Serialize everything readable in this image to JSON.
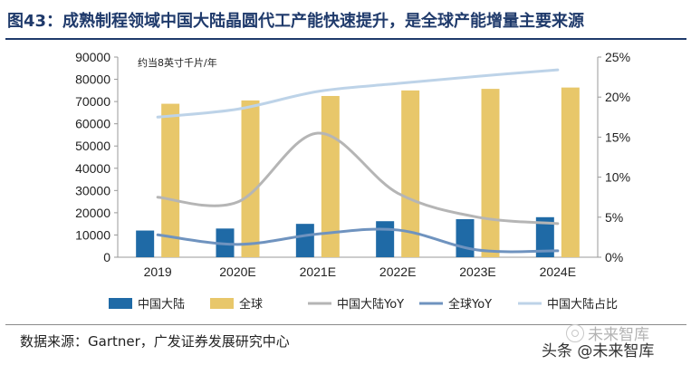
{
  "header": {
    "title": "图43：成熟制程领域中国大陆晶圆代工产能快速提升，是全球产能增量主要来源"
  },
  "chart_data": {
    "type": "bar",
    "categories": [
      "2019",
      "2020E",
      "2021E",
      "2022E",
      "2023E",
      "2024E"
    ],
    "unit_note": "约当8英寸千片/年",
    "left_axis": {
      "min": 0,
      "max": 90000,
      "ticks": [
        "0",
        "10000",
        "20000",
        "30000",
        "40000",
        "50000",
        "60000",
        "70000",
        "80000",
        "90000"
      ]
    },
    "right_axis": {
      "min": 0,
      "max": 25,
      "ticks": [
        "0%",
        "5%",
        "10%",
        "15%",
        "20%",
        "25%"
      ]
    },
    "series": [
      {
        "name": "中国大陆",
        "kind": "bar",
        "axis": "left",
        "color": "#1f6aa6",
        "values": [
          12000,
          12900,
          15000,
          16200,
          17100,
          18000
        ]
      },
      {
        "name": "全球",
        "kind": "bar",
        "axis": "left",
        "color": "#e8c76a",
        "values": [
          69000,
          70500,
          72500,
          75000,
          75700,
          76300
        ]
      },
      {
        "name": "中国大陆YoY",
        "kind": "line",
        "axis": "right",
        "color": "#b5b5b5",
        "values": [
          7.5,
          6.9,
          15.5,
          8.0,
          5.0,
          4.2
        ]
      },
      {
        "name": "全球YoY",
        "kind": "line",
        "axis": "right",
        "color": "#6f93bf",
        "values": [
          2.8,
          1.6,
          2.9,
          3.4,
          0.9,
          0.8
        ]
      },
      {
        "name": "中国大陆占比",
        "kind": "line",
        "axis": "right",
        "color": "#bdd3e8",
        "values": [
          17.5,
          18.5,
          20.7,
          21.7,
          22.6,
          23.4
        ]
      }
    ],
    "legend_placement": "bottom"
  },
  "footer": {
    "source": "数据来源：Gartner，广发证券发展研究中心"
  },
  "watermark": {
    "top": "未来智库",
    "bottom": "头条 @未来智库"
  }
}
